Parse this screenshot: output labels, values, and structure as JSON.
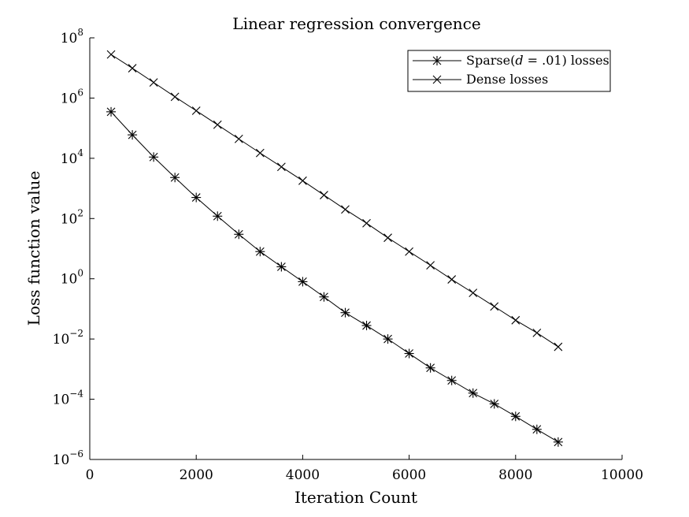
{
  "chart_data": {
    "type": "line",
    "title": "Linear regression convergence",
    "xlabel": "Iteration Count",
    "ylabel": "Loss function value",
    "xlim": [
      0,
      10000
    ],
    "ylim": [
      1e-06,
      100000000.0
    ],
    "yscale": "log",
    "grid": false,
    "legend_position": "top-right",
    "x_ticks": [
      0,
      2000,
      4000,
      6000,
      8000,
      10000
    ],
    "x_tick_labels": [
      "0",
      "2000",
      "4000",
      "6000",
      "8000",
      "10000"
    ],
    "y_ticks": [
      {
        "value": 1e-06,
        "base": "10",
        "exponent": "−6"
      },
      {
        "value": 0.0001,
        "base": "10",
        "exponent": "−4"
      },
      {
        "value": 0.01,
        "base": "10",
        "exponent": "−2"
      },
      {
        "value": 1.0,
        "base": "10",
        "exponent": "0"
      },
      {
        "value": 100.0,
        "base": "10",
        "exponent": "2"
      },
      {
        "value": 10000.0,
        "base": "10",
        "exponent": "4"
      },
      {
        "value": 1000000.0,
        "base": "10",
        "exponent": "6"
      },
      {
        "value": 100000000.0,
        "base": "10",
        "exponent": "8"
      }
    ],
    "x": [
      400,
      800,
      1200,
      1600,
      2000,
      2400,
      2800,
      3200,
      3600,
      4000,
      4400,
      4800,
      5200,
      5600,
      6000,
      6400,
      6800,
      7200,
      7600,
      8000,
      8400,
      8800
    ],
    "series": [
      {
        "name": "Sparse(d = .01) losses",
        "legend_label": {
          "prefix": "Sparse(",
          "var": "d",
          "suffix": " = .01) losses"
        },
        "marker": "asterisk",
        "color": "#000000",
        "values": [
          350000,
          60000,
          11000,
          2300,
          500,
          120,
          30,
          8,
          2.5,
          0.8,
          0.25,
          0.075,
          0.028,
          0.01,
          0.0033,
          0.0011,
          0.00042,
          0.00016,
          7e-05,
          2.7e-05,
          1e-05,
          3.8e-06
        ]
      },
      {
        "name": "Dense losses",
        "legend_label": {
          "prefix": "Dense losses",
          "var": "",
          "suffix": ""
        },
        "marker": "x",
        "color": "#000000",
        "values": [
          28000000,
          9800000,
          3300000,
          1100000,
          380000,
          130000,
          44000,
          15000,
          5200,
          1800,
          600,
          200,
          70,
          23,
          8,
          2.8,
          0.95,
          0.34,
          0.12,
          0.042,
          0.016,
          0.0055
        ]
      }
    ]
  }
}
